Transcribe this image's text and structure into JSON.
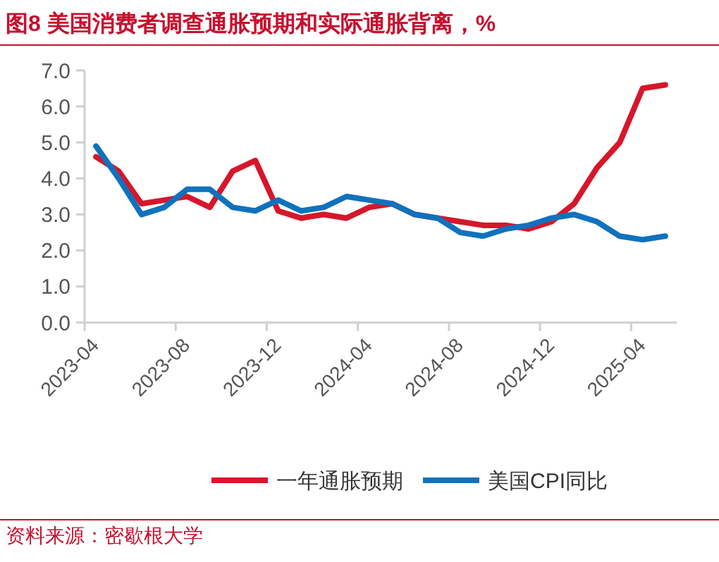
{
  "chart_data": {
    "type": "line",
    "title": "图8 美国消费者调查通胀预期和实际通胀背离，%",
    "categories": [
      "2023-04",
      null,
      null,
      null,
      "2023-08",
      null,
      null,
      null,
      "2023-12",
      null,
      null,
      null,
      "2024-04",
      null,
      null,
      null,
      "2024-08",
      null,
      null,
      null,
      "2024-12",
      null,
      null,
      null,
      "2025-04",
      null
    ],
    "series": [
      {
        "name": "一年通胀预期",
        "color": "#d7162a",
        "values": [
          4.6,
          4.2,
          3.3,
          3.4,
          3.5,
          3.2,
          4.2,
          4.5,
          3.1,
          2.9,
          3.0,
          2.9,
          3.2,
          3.3,
          3.0,
          2.9,
          2.8,
          2.7,
          2.7,
          2.6,
          2.8,
          3.3,
          4.3,
          5.0,
          6.5,
          6.6
        ]
      },
      {
        "name": "美国CPI同比",
        "color": "#0f72bd",
        "values": [
          4.9,
          4.0,
          3.0,
          3.2,
          3.7,
          3.7,
          3.2,
          3.1,
          3.4,
          3.1,
          3.2,
          3.5,
          3.4,
          3.3,
          3.0,
          2.9,
          2.5,
          2.4,
          2.6,
          2.7,
          2.9,
          3.0,
          2.8,
          2.4,
          2.3,
          2.4
        ]
      }
    ],
    "ylim": [
      0,
      7
    ],
    "yticks": [
      {
        "value": 0,
        "label": "0.0"
      },
      {
        "value": 1,
        "label": "1.0"
      },
      {
        "value": 2,
        "label": "2.0"
      },
      {
        "value": 3,
        "label": "3.0"
      },
      {
        "value": 4,
        "label": "4.0"
      },
      {
        "value": 5,
        "label": "5.0"
      },
      {
        "value": 6,
        "label": "6.0"
      },
      {
        "value": 7,
        "label": "7.0"
      }
    ],
    "legend": "bottom",
    "grid": false,
    "marker": "none",
    "line_style": "solid",
    "annotations": [
      "资料来源：密歇根大学"
    ]
  }
}
